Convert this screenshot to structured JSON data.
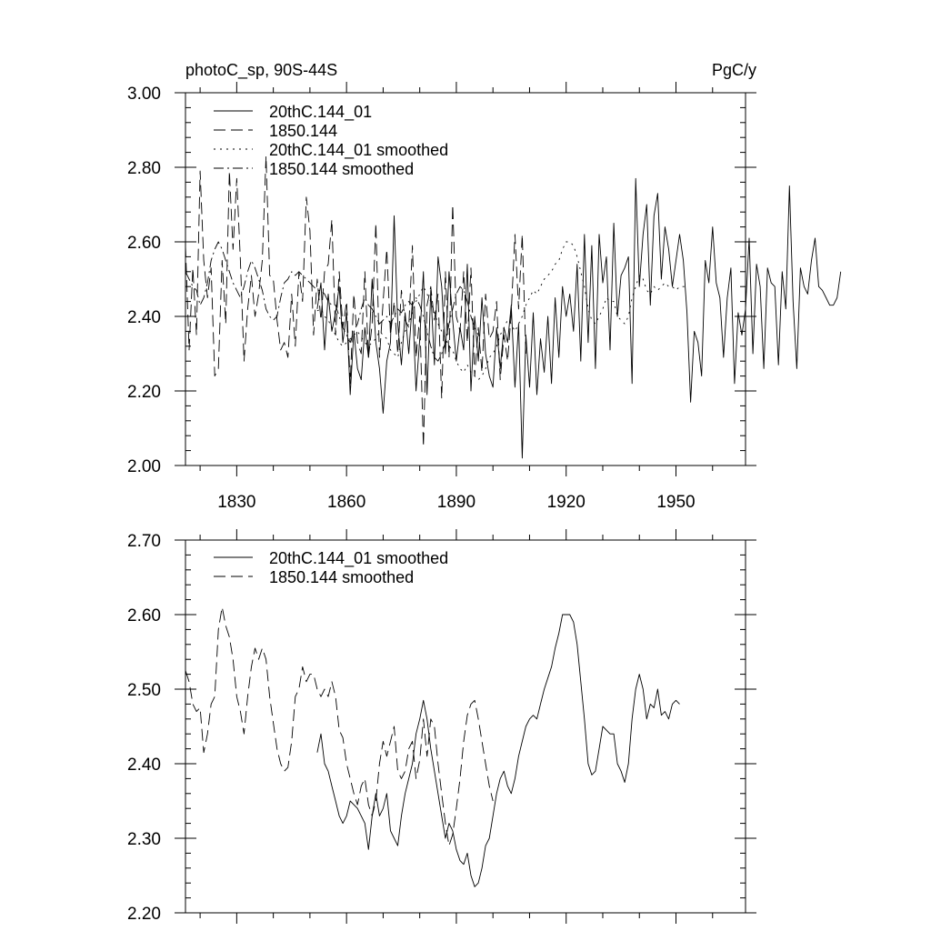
{
  "chart_data": [
    {
      "type": "line",
      "title_left": "photoC_sp, 90S-44S",
      "title_right": "PgC/y",
      "xlim": [
        1816,
        1969
      ],
      "ylim": [
        2.0,
        3.0
      ],
      "x_ticks": [
        1830,
        1860,
        1890,
        1920,
        1950
      ],
      "x_tick_labels": [
        "1830",
        "1860",
        "1890",
        "1920",
        "1950"
      ],
      "y_ticks": [
        2.0,
        2.2,
        2.4,
        2.6,
        2.8,
        3.0
      ],
      "y_tick_labels": [
        "2.00",
        "2.20",
        "2.40",
        "2.60",
        "2.80",
        "3.00"
      ],
      "legend": [
        "20thC.144_01",
        "1850.144",
        "20thC.144_01 smoothed",
        "1850.144 smoothed"
      ],
      "legend_position": "top-left",
      "series": [
        {
          "name": "20thC.144_01",
          "style": "solid",
          "x_start": 1852,
          "values": [
            2.42,
            2.49,
            2.31,
            2.46,
            2.36,
            2.41,
            2.48,
            2.33,
            2.41,
            2.19,
            2.36,
            2.26,
            2.23,
            2.37,
            2.29,
            2.5,
            2.33,
            2.26,
            2.14,
            2.28,
            2.33,
            2.67,
            2.38,
            2.27,
            2.41,
            2.3,
            2.44,
            2.2,
            2.34,
            2.52,
            2.19,
            2.47,
            2.27,
            2.56,
            2.48,
            2.3,
            2.52,
            2.39,
            2.28,
            2.37,
            2.31,
            2.54,
            2.2,
            2.4,
            2.28,
            2.45,
            2.3,
            2.24,
            2.21,
            2.37,
            2.26,
            2.37,
            2.33,
            2.43,
            2.21,
            2.38,
            2.02,
            2.35,
            2.21,
            2.41,
            2.19,
            2.34,
            2.25,
            2.4,
            2.22,
            2.45,
            2.29,
            2.48,
            2.4,
            2.46,
            2.36,
            2.54,
            2.28,
            2.62,
            2.33,
            2.59,
            2.26,
            2.62,
            2.49,
            2.56,
            2.31,
            2.65,
            2.4,
            2.51,
            2.53,
            2.56,
            2.22,
            2.77,
            2.48,
            2.62,
            2.7,
            2.43,
            2.67,
            2.73,
            2.5,
            2.64,
            2.58,
            2.48,
            2.55,
            2.62,
            2.55,
            2.41,
            2.17,
            2.36,
            2.33,
            2.24,
            2.55,
            2.49,
            2.64,
            2.49,
            2.45,
            2.29,
            2.45,
            2.53,
            2.22,
            2.41,
            2.35,
            2.42,
            2.61,
            2.3,
            2.54,
            2.48,
            2.26,
            2.53,
            2.49,
            2.48,
            2.27,
            2.52,
            2.42,
            2.75,
            2.44,
            2.26,
            2.53,
            2.48,
            2.46,
            2.55,
            2.61,
            2.48,
            2.47,
            2.45,
            2.43,
            2.43,
            2.45,
            2.52
          ]
        },
        {
          "name": "1850.144",
          "style": "dashed",
          "x_start": 1816,
          "values": [
            2.59,
            2.31,
            2.53,
            2.35,
            2.79,
            2.55,
            2.45,
            2.53,
            2.24,
            2.26,
            2.55,
            2.38,
            2.79,
            2.58,
            2.77,
            2.55,
            2.28,
            2.42,
            2.51,
            2.4,
            2.46,
            2.55,
            2.83,
            2.51,
            2.5,
            2.39,
            2.31,
            2.33,
            2.29,
            2.46,
            2.32,
            2.52,
            2.44,
            2.72,
            2.63,
            2.35,
            2.5,
            2.39,
            2.52,
            2.54,
            2.66,
            2.35,
            2.52,
            2.37,
            2.44,
            2.22,
            2.46,
            2.33,
            2.3,
            2.52,
            2.29,
            2.38,
            2.65,
            2.29,
            2.44,
            2.58,
            2.35,
            2.44,
            2.3,
            2.47,
            2.39,
            2.37,
            2.59,
            2.29,
            2.4,
            2.05,
            2.43,
            2.48,
            2.39,
            2.46,
            2.18,
            2.52,
            2.29,
            2.7,
            2.4,
            2.36,
            2.52,
            2.33,
            2.53,
            2.24,
            2.37,
            2.25,
            2.46,
            2.34,
            2.36,
            2.44,
            2.23,
            2.35,
            2.28,
            2.41,
            2.62,
            2.42,
            2.62,
            2.3
          ]
        },
        {
          "name": "20thC.144_01 smoothed",
          "style": "dotted",
          "x_start": 1852,
          "values": [
            2.415,
            2.42,
            2.4,
            2.39,
            2.37,
            2.35,
            2.33,
            2.32,
            2.33,
            2.34,
            2.35,
            2.36,
            2.345,
            2.33,
            2.32,
            2.33,
            2.34,
            2.36,
            2.35,
            2.34,
            2.31,
            2.3,
            2.29,
            2.33,
            2.36,
            2.38,
            2.41,
            2.44,
            2.46,
            2.48,
            2.46,
            2.44,
            2.41,
            2.38,
            2.36,
            2.34,
            2.32,
            2.31,
            2.28,
            2.26,
            2.25,
            2.27,
            2.25,
            2.24,
            2.23,
            2.24,
            2.26,
            2.29,
            2.3,
            2.32,
            2.35,
            2.37,
            2.39,
            2.38,
            2.36,
            2.38,
            2.4,
            2.43,
            2.45,
            2.47,
            2.46,
            2.48,
            2.5,
            2.51,
            2.52,
            2.54,
            2.55,
            2.58,
            2.6,
            2.6,
            2.59,
            2.56,
            2.52,
            2.48,
            2.42,
            2.39,
            2.38,
            2.4,
            2.42,
            2.45,
            2.44,
            2.44,
            2.4,
            2.39,
            2.38,
            2.4,
            2.45,
            2.48,
            2.51,
            2.5,
            2.47,
            2.46,
            2.48,
            2.47,
            2.48,
            2.49,
            2.48,
            2.48,
            2.47,
            2.48,
            2.48,
            2.48
          ]
        },
        {
          "name": "1850.144 smoothed",
          "style": "dash-dot",
          "x_start": 1816,
          "values": [
            2.52,
            2.5,
            2.48,
            2.47,
            2.43,
            2.45,
            2.49,
            2.55,
            2.58,
            2.6,
            2.58,
            2.55,
            2.52,
            2.49,
            2.47,
            2.45,
            2.48,
            2.52,
            2.55,
            2.53,
            2.5,
            2.47,
            2.42,
            2.4,
            2.39,
            2.4,
            2.45,
            2.49,
            2.5,
            2.52,
            2.51,
            2.52,
            2.51,
            2.5,
            2.49,
            2.48,
            2.47,
            2.47,
            2.46,
            2.44,
            2.43,
            2.43,
            2.4,
            2.37,
            2.35,
            2.33,
            2.36,
            2.38,
            2.42,
            2.45,
            2.43,
            2.42,
            2.4,
            2.38,
            2.39,
            2.4,
            2.38,
            2.4,
            2.42,
            2.41,
            2.43,
            2.44,
            2.43,
            2.45,
            2.43,
            2.4,
            2.36,
            2.32,
            2.29,
            2.28,
            2.3,
            2.33,
            2.38,
            2.42,
            2.46,
            2.48,
            2.47,
            2.44,
            2.4,
            2.37,
            2.35
          ]
        }
      ]
    },
    {
      "type": "line",
      "xlim": [
        1816,
        1969
      ],
      "ylim": [
        2.2,
        2.7
      ],
      "x_ticks": [
        1830,
        1860,
        1890,
        1920,
        1950
      ],
      "y_ticks": [
        2.2,
        2.3,
        2.4,
        2.5,
        2.6,
        2.7
      ],
      "y_tick_labels": [
        "2.20",
        "2.30",
        "2.40",
        "2.50",
        "2.60",
        "2.70"
      ],
      "legend": [
        "20thC.144_01 smoothed",
        "1850.144 smoothed"
      ],
      "legend_position": "top-left",
      "series": [
        {
          "name": "20thC.144_01 smoothed",
          "style": "solid",
          "x_start": 1852,
          "values": [
            2.415,
            2.44,
            2.4,
            2.39,
            2.37,
            2.35,
            2.33,
            2.32,
            2.33,
            2.35,
            2.345,
            2.34,
            2.33,
            2.32,
            2.285,
            2.33,
            2.36,
            2.33,
            2.34,
            2.36,
            2.31,
            2.3,
            2.29,
            2.33,
            2.36,
            2.38,
            2.4,
            2.44,
            2.46,
            2.485,
            2.46,
            2.42,
            2.39,
            2.36,
            2.33,
            2.3,
            2.32,
            2.31,
            2.285,
            2.27,
            2.265,
            2.28,
            2.25,
            2.235,
            2.24,
            2.26,
            2.29,
            2.3,
            2.33,
            2.36,
            2.38,
            2.39,
            2.37,
            2.36,
            2.38,
            2.41,
            2.43,
            2.45,
            2.46,
            2.465,
            2.46,
            2.48,
            2.5,
            2.515,
            2.53,
            2.555,
            2.575,
            2.6,
            2.6,
            2.6,
            2.59,
            2.56,
            2.51,
            2.46,
            2.4,
            2.385,
            2.39,
            2.42,
            2.45,
            2.445,
            2.44,
            2.44,
            2.4,
            2.39,
            2.375,
            2.4,
            2.46,
            2.5,
            2.52,
            2.5,
            2.46,
            2.48,
            2.475,
            2.5,
            2.465,
            2.47,
            2.46,
            2.48,
            2.485,
            2.48
          ]
        },
        {
          "name": "1850.144 smoothed",
          "style": "dashed",
          "x_start": 1816,
          "values": [
            2.525,
            2.51,
            2.48,
            2.47,
            2.475,
            2.415,
            2.44,
            2.48,
            2.49,
            2.58,
            2.61,
            2.585,
            2.57,
            2.54,
            2.49,
            2.47,
            2.44,
            2.49,
            2.53,
            2.555,
            2.54,
            2.555,
            2.54,
            2.49,
            2.455,
            2.42,
            2.4,
            2.39,
            2.395,
            2.43,
            2.49,
            2.5,
            2.53,
            2.51,
            2.52,
            2.52,
            2.5,
            2.49,
            2.5,
            2.49,
            2.51,
            2.49,
            2.445,
            2.435,
            2.4,
            2.38,
            2.36,
            2.345,
            2.37,
            2.38,
            2.345,
            2.33,
            2.35,
            2.4,
            2.43,
            2.41,
            2.43,
            2.45,
            2.39,
            2.38,
            2.39,
            2.42,
            2.43,
            2.38,
            2.405,
            2.46,
            2.41,
            2.46,
            2.45,
            2.4,
            2.36,
            2.32,
            2.29,
            2.305,
            2.34,
            2.38,
            2.43,
            2.465,
            2.48,
            2.485,
            2.46,
            2.43,
            2.4,
            2.37,
            2.35
          ]
        }
      ]
    }
  ]
}
